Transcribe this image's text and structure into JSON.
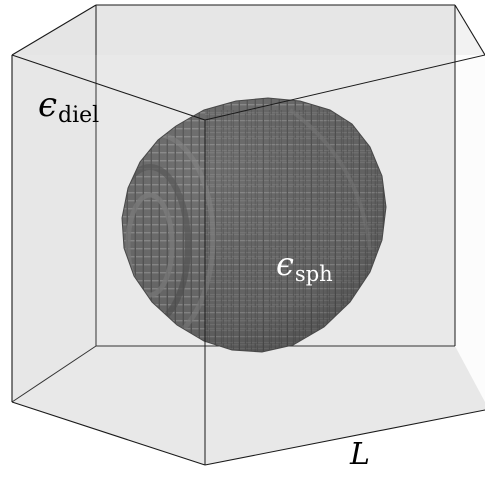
{
  "labels": {
    "dielectric_symbol": "ϵ",
    "dielectric_subscript": "diel",
    "sphere_symbol": "ϵ",
    "sphere_subscript": "sph",
    "edge_length": "L"
  },
  "colors": {
    "box_face": "#d6d6d6",
    "box_edge": "#1a1a1a",
    "sphere_base": "#575757",
    "sphere_light": "#7a7a7a",
    "sphere_dark": "#3a3a3a",
    "label_on_sphere": "#ffffff"
  }
}
